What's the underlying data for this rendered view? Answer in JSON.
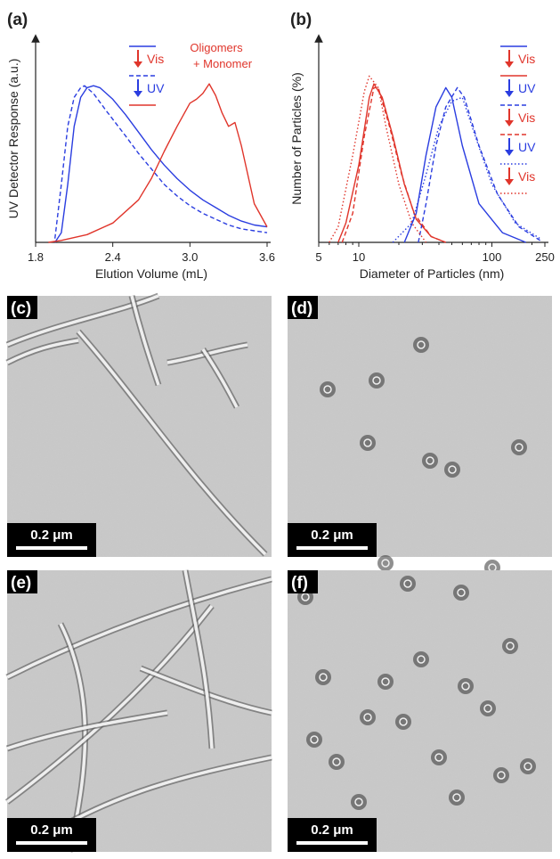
{
  "chart_data": [
    {
      "type": "line",
      "label": "(a)",
      "x_label": "Elution Volume (mL)",
      "y_label": "UV Detector Response (a.u.)",
      "xlim": [
        1.8,
        3.6
      ],
      "xticks": [
        1.8,
        2.4,
        {
          "value": 3,
          "label": "3.0"
        },
        3.6
      ],
      "ylim": [
        0,
        1
      ],
      "log": false,
      "legend_steps": [
        {
          "label": "Vis",
          "color": "#e0352b"
        },
        {
          "label": "UV",
          "color": "#2a3de0"
        }
      ],
      "annotation": [
        "Oligomers",
        "+ Monomer"
      ],
      "series": [
        {
          "color": "#2a3de0",
          "style": "solid",
          "x": [
            1.95,
            2.0,
            2.05,
            2.1,
            2.15,
            2.2,
            2.25,
            2.3,
            2.4,
            2.5,
            2.6,
            2.7,
            2.8,
            2.9,
            3.0,
            3.1,
            3.2,
            3.3,
            3.4,
            3.5,
            3.6
          ],
          "values": [
            0,
            0.05,
            0.3,
            0.6,
            0.75,
            0.8,
            0.81,
            0.8,
            0.74,
            0.66,
            0.57,
            0.48,
            0.4,
            0.33,
            0.27,
            0.22,
            0.18,
            0.14,
            0.11,
            0.09,
            0.08
          ]
        },
        {
          "color": "#2a3de0",
          "style": "dashed",
          "x": [
            1.95,
            2.0,
            2.05,
            2.1,
            2.15,
            2.18,
            2.25,
            2.35,
            2.5,
            2.6,
            2.7,
            2.8,
            2.9,
            3.0,
            3.1,
            3.2,
            3.3,
            3.4,
            3.5,
            3.6
          ],
          "values": [
            0.02,
            0.3,
            0.6,
            0.75,
            0.8,
            0.81,
            0.77,
            0.68,
            0.55,
            0.46,
            0.38,
            0.3,
            0.24,
            0.19,
            0.15,
            0.12,
            0.09,
            0.07,
            0.06,
            0.05
          ]
        },
        {
          "color": "#e0352b",
          "style": "solid",
          "x": [
            1.9,
            2.0,
            2.2,
            2.4,
            2.6,
            2.7,
            2.8,
            2.9,
            2.95,
            3.0,
            3.05,
            3.1,
            3.15,
            3.2,
            3.25,
            3.3,
            3.35,
            3.4,
            3.5,
            3.6
          ],
          "values": [
            0,
            0.01,
            0.04,
            0.1,
            0.22,
            0.33,
            0.47,
            0.6,
            0.66,
            0.72,
            0.74,
            0.77,
            0.82,
            0.76,
            0.67,
            0.6,
            0.62,
            0.5,
            0.2,
            0.08
          ]
        }
      ]
    },
    {
      "type": "line",
      "label": "(b)",
      "x_label": "Diameter of Particles (nm)",
      "y_label": "Number of Particles (%)",
      "xlim": [
        5,
        250
      ],
      "xticks": [
        5,
        10,
        100,
        250
      ],
      "ylim": [
        0,
        1
      ],
      "log": true,
      "legend_steps": [
        {
          "label": "Vis",
          "color": "#e0352b"
        },
        {
          "label": "UV",
          "color": "#2a3de0"
        },
        {
          "label": "Vis",
          "color": "#e0352b"
        },
        {
          "label": "UV",
          "color": "#2a3de0"
        },
        {
          "label": "Vis",
          "color": "#e0352b"
        }
      ],
      "series": [
        {
          "color": "#2a3de0",
          "style": "solid",
          "x": [
            22,
            27,
            32,
            38,
            45,
            50,
            60,
            80,
            120,
            180
          ],
          "values": [
            0,
            0.15,
            0.45,
            0.7,
            0.8,
            0.75,
            0.5,
            0.2,
            0.05,
            0
          ]
        },
        {
          "color": "#e0352b",
          "style": "solid",
          "x": [
            7,
            8,
            10,
            12,
            13,
            15,
            18,
            22,
            27,
            35,
            45
          ],
          "values": [
            0,
            0.1,
            0.4,
            0.75,
            0.82,
            0.75,
            0.55,
            0.3,
            0.12,
            0.03,
            0
          ]
        },
        {
          "color": "#2a3de0",
          "style": "dashed",
          "x": [
            28,
            32,
            38,
            45,
            55,
            62,
            80,
            110,
            160,
            230
          ],
          "values": [
            0,
            0.2,
            0.5,
            0.7,
            0.8,
            0.75,
            0.5,
            0.25,
            0.08,
            0.01
          ]
        },
        {
          "color": "#e0352b",
          "style": "dashed",
          "x": [
            7.5,
            9,
            11,
            13,
            14,
            17,
            21,
            26,
            35,
            45
          ],
          "values": [
            0,
            0.15,
            0.55,
            0.8,
            0.8,
            0.6,
            0.35,
            0.15,
            0.03,
            0
          ]
        },
        {
          "color": "#2a3de0",
          "style": "dotted",
          "x": [
            18,
            25,
            32,
            40,
            50,
            60,
            75,
            100,
            150,
            230
          ],
          "values": [
            0,
            0.1,
            0.35,
            0.6,
            0.73,
            0.75,
            0.55,
            0.3,
            0.1,
            0.02
          ]
        },
        {
          "color": "#e0352b",
          "style": "dotted",
          "x": [
            6,
            7,
            9,
            11,
            12,
            14,
            16,
            20,
            25,
            32
          ],
          "values": [
            0,
            0.08,
            0.45,
            0.78,
            0.86,
            0.8,
            0.6,
            0.3,
            0.1,
            0
          ]
        }
      ]
    }
  ],
  "micrographs": [
    {
      "label": "(c)",
      "scale_bar": "0.2 μm"
    },
    {
      "label": "(d)",
      "scale_bar": "0.2 μm"
    },
    {
      "label": "(e)",
      "scale_bar": "0.2 μm"
    },
    {
      "label": "(f)",
      "scale_bar": "0.2 μm"
    }
  ]
}
